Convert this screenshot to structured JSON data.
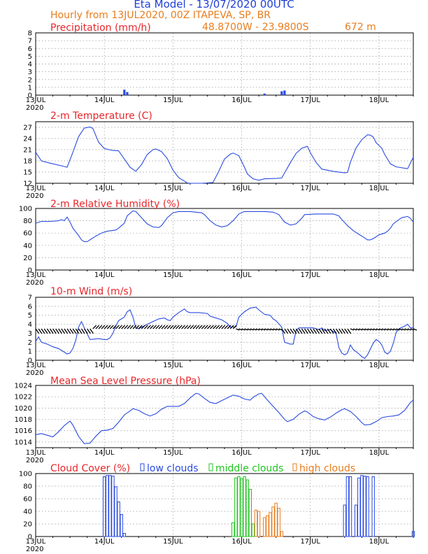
{
  "header": {
    "title": "Eta Model - 13/07/2020 00UTC",
    "line2": "Hourly from 13JUL2020, 00Z  ITAPEVA, SP, BR",
    "coords": "48.8700W - 23.9800S",
    "elevation": "672  m"
  },
  "x_axis": {
    "labels": [
      "13JUL",
      "14JUL",
      "15JUL",
      "16JUL",
      "17JUL",
      "18JUL"
    ],
    "year": "2020",
    "hours_total": 132
  },
  "colors": {
    "line": "#2a4be0",
    "low": "#2a4be0",
    "middle": "#1fc41f",
    "high": "#e87d1e",
    "title": "#e8262a"
  },
  "legend": {
    "low": "low clouds",
    "middle": "middle clouds",
    "high": "high clouds"
  },
  "chart_data": [
    {
      "type": "bar",
      "title": "Precipitation (mm/h)",
      "ylim": [
        0,
        8
      ],
      "yticks": [
        0,
        1,
        2,
        3,
        4,
        5,
        6,
        7,
        8
      ],
      "points": [
        [
          31,
          0.7
        ],
        [
          32,
          0.4
        ],
        [
          80,
          0.2
        ],
        [
          86,
          0.5
        ],
        [
          87,
          0.6
        ]
      ]
    },
    {
      "type": "line",
      "title": "2-m Temperature (C)",
      "ylim": [
        12,
        28.5
      ],
      "yticks": [
        12,
        15,
        18,
        21,
        24,
        27
      ],
      "points": [
        [
          0,
          20.3
        ],
        [
          2,
          18.0
        ],
        [
          5,
          17.4
        ],
        [
          10,
          16.5
        ],
        [
          11,
          16.3
        ],
        [
          13,
          20.3
        ],
        [
          15,
          24.5
        ],
        [
          17,
          26.8
        ],
        [
          19,
          27.1
        ],
        [
          20,
          26.7
        ],
        [
          22,
          23.0
        ],
        [
          24,
          21.3
        ],
        [
          27,
          20.8
        ],
        [
          29,
          20.7
        ],
        [
          31,
          18.5
        ],
        [
          33,
          16.3
        ],
        [
          35,
          15.2
        ],
        [
          37,
          17.0
        ],
        [
          39,
          19.7
        ],
        [
          41,
          21.0
        ],
        [
          42,
          21.2
        ],
        [
          44,
          20.5
        ],
        [
          46,
          18.6
        ],
        [
          48,
          15.5
        ],
        [
          50,
          13.5
        ],
        [
          53,
          12.1
        ],
        [
          54,
          12.0
        ],
        [
          58,
          12.0
        ],
        [
          62,
          12.2
        ],
        [
          64,
          15.2
        ],
        [
          66,
          18.5
        ],
        [
          68,
          19.8
        ],
        [
          69,
          20.1
        ],
        [
          71,
          19.4
        ],
        [
          73,
          16.3
        ],
        [
          74,
          14.5
        ],
        [
          76,
          13.2
        ],
        [
          78,
          12.8
        ],
        [
          80,
          13.2
        ],
        [
          84,
          13.3
        ],
        [
          86,
          13.4
        ],
        [
          89,
          17.5
        ],
        [
          91,
          20.0
        ],
        [
          93,
          21.4
        ],
        [
          95,
          21.9
        ],
        [
          96,
          20.2
        ],
        [
          98,
          17.6
        ],
        [
          100,
          15.8
        ],
        [
          104,
          15.2
        ],
        [
          108,
          14.8
        ],
        [
          109,
          14.9
        ],
        [
          110,
          17.6
        ],
        [
          112,
          21.5
        ],
        [
          114,
          23.7
        ],
        [
          116,
          25.0
        ],
        [
          117,
          24.9
        ],
        [
          118,
          24.4
        ],
        [
          119,
          22.9
        ],
        [
          121,
          21.4
        ],
        [
          122,
          19.7
        ],
        [
          124,
          17.2
        ],
        [
          126,
          16.4
        ],
        [
          130,
          15.9
        ],
        [
          132,
          19.0
        ]
      ]
    },
    {
      "type": "line",
      "title": "2-m Relative Humidity (%)",
      "ylim": [
        0,
        100
      ],
      "yticks": [
        0,
        20,
        40,
        60,
        80,
        100
      ],
      "points": [
        [
          0,
          76
        ],
        [
          2,
          79
        ],
        [
          5,
          79
        ],
        [
          8,
          80
        ],
        [
          9,
          82
        ],
        [
          10,
          80
        ],
        [
          11,
          86
        ],
        [
          12,
          78
        ],
        [
          13,
          68
        ],
        [
          15,
          56
        ],
        [
          16,
          49
        ],
        [
          17,
          46
        ],
        [
          18,
          46
        ],
        [
          19,
          49
        ],
        [
          21,
          55
        ],
        [
          23,
          60
        ],
        [
          25,
          63
        ],
        [
          28,
          65
        ],
        [
          29,
          68
        ],
        [
          31,
          76
        ],
        [
          32,
          88
        ],
        [
          34,
          96
        ],
        [
          35,
          95
        ],
        [
          37,
          85
        ],
        [
          39,
          75
        ],
        [
          41,
          70
        ],
        [
          43,
          69
        ],
        [
          44,
          72
        ],
        [
          46,
          85
        ],
        [
          48,
          93
        ],
        [
          50,
          95
        ],
        [
          54,
          95
        ],
        [
          56,
          94
        ],
        [
          58,
          93
        ],
        [
          59,
          90
        ],
        [
          61,
          80
        ],
        [
          63,
          73
        ],
        [
          65,
          70
        ],
        [
          67,
          72
        ],
        [
          69,
          80
        ],
        [
          71,
          91
        ],
        [
          73,
          95
        ],
        [
          76,
          95
        ],
        [
          80,
          95
        ],
        [
          83,
          94
        ],
        [
          85,
          90
        ],
        [
          87,
          78
        ],
        [
          89,
          73
        ],
        [
          91,
          75
        ],
        [
          93,
          84
        ],
        [
          94,
          90
        ],
        [
          98,
          91
        ],
        [
          104,
          91
        ],
        [
          106,
          88
        ],
        [
          107,
          82
        ],
        [
          109,
          72
        ],
        [
          111,
          64
        ],
        [
          113,
          58
        ],
        [
          115,
          52
        ],
        [
          116,
          49
        ],
        [
          117,
          49
        ],
        [
          118,
          51
        ],
        [
          120,
          57
        ],
        [
          122,
          60
        ],
        [
          123,
          63
        ],
        [
          124,
          68
        ],
        [
          125,
          75
        ],
        [
          127,
          82
        ],
        [
          128,
          85
        ],
        [
          130,
          87
        ],
        [
          131,
          84
        ],
        [
          132,
          78
        ]
      ]
    },
    {
      "type": "line",
      "title": "10-m Wind (m/s)",
      "ylim": [
        0,
        7
      ],
      "yticks": [
        0,
        1,
        2,
        3,
        4,
        5,
        6,
        7
      ],
      "points": [
        [
          0,
          2.1
        ],
        [
          1,
          2.6
        ],
        [
          2,
          2.0
        ],
        [
          4,
          1.8
        ],
        [
          6,
          1.5
        ],
        [
          8,
          1.3
        ],
        [
          10,
          0.9
        ],
        [
          11,
          0.7
        ],
        [
          12,
          0.8
        ],
        [
          13,
          1.3
        ],
        [
          14,
          2.2
        ],
        [
          15,
          3.7
        ],
        [
          16,
          4.3
        ],
        [
          17,
          3.6
        ],
        [
          19,
          2.3
        ],
        [
          22,
          2.4
        ],
        [
          24,
          2.3
        ],
        [
          25,
          2.3
        ],
        [
          26,
          2.5
        ],
        [
          27,
          3.0
        ],
        [
          28,
          3.8
        ],
        [
          29,
          4.4
        ],
        [
          30,
          4.6
        ],
        [
          31,
          4.8
        ],
        [
          32,
          5.4
        ],
        [
          33,
          5.6
        ],
        [
          34,
          4.8
        ],
        [
          35,
          3.6
        ],
        [
          36,
          3.5
        ],
        [
          39,
          4.0
        ],
        [
          41,
          4.3
        ],
        [
          43,
          4.6
        ],
        [
          45,
          4.7
        ],
        [
          46,
          4.5
        ],
        [
          47,
          4.4
        ],
        [
          48,
          4.8
        ],
        [
          50,
          5.3
        ],
        [
          52,
          5.7
        ],
        [
          53,
          5.4
        ],
        [
          54,
          5.3
        ],
        [
          57,
          5.3
        ],
        [
          60,
          5.2
        ],
        [
          61,
          4.9
        ],
        [
          62,
          4.8
        ],
        [
          65,
          4.5
        ],
        [
          67,
          4.1
        ],
        [
          68,
          3.7
        ],
        [
          70,
          3.7
        ],
        [
          71,
          4.8
        ],
        [
          73,
          5.4
        ],
        [
          75,
          5.8
        ],
        [
          77,
          5.9
        ],
        [
          78,
          5.6
        ],
        [
          80,
          5.1
        ],
        [
          82,
          5.0
        ],
        [
          83,
          4.6
        ],
        [
          84,
          4.4
        ],
        [
          86,
          3.7
        ],
        [
          87,
          2.0
        ],
        [
          88,
          1.9
        ],
        [
          89,
          1.8
        ],
        [
          90,
          1.8
        ],
        [
          91,
          3.3
        ],
        [
          92,
          3.6
        ],
        [
          95,
          3.6
        ],
        [
          97,
          3.6
        ],
        [
          99,
          3.4
        ],
        [
          100,
          3.6
        ],
        [
          101,
          3.3
        ],
        [
          103,
          3.4
        ],
        [
          105,
          3.0
        ],
        [
          106,
          1.4
        ],
        [
          107,
          0.8
        ],
        [
          108,
          0.6
        ],
        [
          109,
          0.8
        ],
        [
          110,
          1.7
        ],
        [
          111,
          1.2
        ],
        [
          113,
          0.7
        ],
        [
          114,
          0.4
        ],
        [
          115,
          0.2
        ],
        [
          116,
          0.6
        ],
        [
          118,
          1.9
        ],
        [
          119,
          2.3
        ],
        [
          120,
          2.1
        ],
        [
          121,
          1.7
        ],
        [
          122,
          0.9
        ],
        [
          123,
          0.7
        ],
        [
          124,
          1.0
        ],
        [
          125,
          1.9
        ],
        [
          126,
          3.1
        ],
        [
          127,
          3.5
        ],
        [
          129,
          3.8
        ],
        [
          130,
          4.0
        ],
        [
          131,
          3.6
        ],
        [
          132,
          3.6
        ]
      ]
    },
    {
      "type": "line",
      "title": "Mean Sea Level Pressure (hPa)",
      "ylim": [
        1013,
        1024
      ],
      "yticks": [
        1014,
        1016,
        1018,
        1020,
        1022,
        1024
      ],
      "points": [
        [
          0,
          1015.3
        ],
        [
          2,
          1015.5
        ],
        [
          4,
          1015.2
        ],
        [
          6,
          1014.9
        ],
        [
          8,
          1015.8
        ],
        [
          10,
          1016.9
        ],
        [
          12,
          1017.7
        ],
        [
          13,
          1017.0
        ],
        [
          15,
          1015.0
        ],
        [
          17,
          1013.7
        ],
        [
          19,
          1013.8
        ],
        [
          21,
          1015.0
        ],
        [
          23,
          1016.0
        ],
        [
          25,
          1016.1
        ],
        [
          27,
          1016.4
        ],
        [
          29,
          1017.5
        ],
        [
          31,
          1018.8
        ],
        [
          33,
          1019.5
        ],
        [
          34,
          1019.9
        ],
        [
          36,
          1019.6
        ],
        [
          38,
          1019.0
        ],
        [
          40,
          1018.6
        ],
        [
          42,
          1019.0
        ],
        [
          44,
          1019.8
        ],
        [
          46,
          1020.3
        ],
        [
          50,
          1020.3
        ],
        [
          52,
          1020.8
        ],
        [
          54,
          1021.8
        ],
        [
          56,
          1022.6
        ],
        [
          57,
          1022.5
        ],
        [
          59,
          1021.7
        ],
        [
          61,
          1021.0
        ],
        [
          63,
          1020.8
        ],
        [
          65,
          1021.3
        ],
        [
          67,
          1021.8
        ],
        [
          69,
          1022.3
        ],
        [
          71,
          1022.1
        ],
        [
          73,
          1021.6
        ],
        [
          75,
          1021.4
        ],
        [
          76,
          1021.9
        ],
        [
          78,
          1022.5
        ],
        [
          79,
          1022.6
        ],
        [
          81,
          1021.4
        ],
        [
          83,
          1020.3
        ],
        [
          85,
          1019.2
        ],
        [
          87,
          1018.0
        ],
        [
          88,
          1017.6
        ],
        [
          90,
          1018.0
        ],
        [
          92,
          1018.9
        ],
        [
          94,
          1019.5
        ],
        [
          95,
          1019.3
        ],
        [
          97,
          1018.5
        ],
        [
          99,
          1018.1
        ],
        [
          101,
          1017.9
        ],
        [
          103,
          1018.4
        ],
        [
          105,
          1019.1
        ],
        [
          107,
          1019.7
        ],
        [
          108,
          1019.9
        ],
        [
          110,
          1019.4
        ],
        [
          112,
          1018.5
        ],
        [
          114,
          1017.4
        ],
        [
          115,
          1017.0
        ],
        [
          117,
          1017.1
        ],
        [
          119,
          1017.6
        ],
        [
          121,
          1018.3
        ],
        [
          123,
          1018.5
        ],
        [
          125,
          1018.6
        ],
        [
          127,
          1018.8
        ],
        [
          129,
          1019.6
        ],
        [
          131,
          1021.0
        ],
        [
          132,
          1021.4
        ]
      ]
    },
    {
      "type": "bar",
      "title": "Cloud Cover (%)",
      "ylim": [
        0,
        100
      ],
      "yticks": [
        0,
        20,
        40,
        60,
        80,
        100
      ],
      "low": [
        [
          24,
          95
        ],
        [
          25,
          97
        ],
        [
          26,
          97
        ],
        [
          27,
          96
        ],
        [
          28,
          79
        ],
        [
          29,
          55
        ],
        [
          30,
          35
        ],
        [
          31,
          5
        ],
        [
          108,
          50
        ],
        [
          109,
          95
        ],
        [
          110,
          95
        ],
        [
          112,
          50
        ],
        [
          113,
          93
        ],
        [
          114,
          97
        ],
        [
          115,
          96
        ],
        [
          116,
          95
        ],
        [
          118,
          95
        ],
        [
          132,
          8
        ]
      ],
      "middle": [
        [
          69,
          22
        ],
        [
          70,
          93
        ],
        [
          71,
          95
        ],
        [
          72,
          92
        ],
        [
          73,
          95
        ],
        [
          74,
          90
        ],
        [
          75,
          75
        ],
        [
          76,
          20
        ]
      ],
      "high": [
        [
          77,
          42
        ],
        [
          78,
          40
        ],
        [
          80,
          30
        ],
        [
          81,
          33
        ],
        [
          82,
          38
        ],
        [
          83,
          47
        ],
        [
          84,
          53
        ],
        [
          85,
          45
        ],
        [
          86,
          8
        ]
      ]
    }
  ]
}
